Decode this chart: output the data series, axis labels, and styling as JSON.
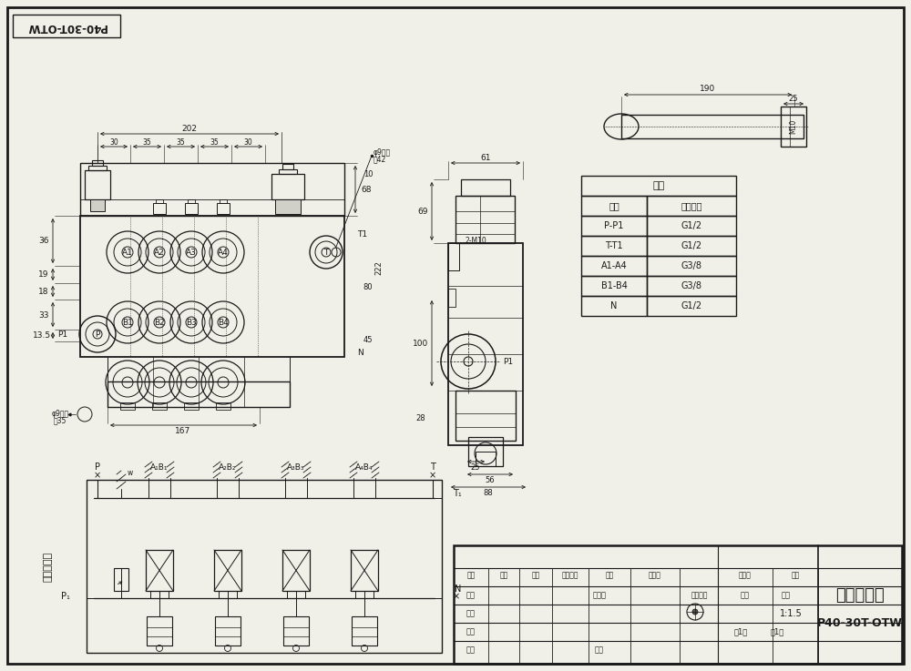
{
  "title_mirrored": "P40-30T-OTW",
  "bg_color": "#f0f0e8",
  "line_color": "#1a1a1a",
  "table_title": "阀体",
  "table_headers": [
    "接口",
    "螺纹规格"
  ],
  "table_rows": [
    [
      "P-P1",
      "G1/2"
    ],
    [
      "T-T1",
      "G1/2"
    ],
    [
      "A1-A4",
      "G3/8"
    ],
    [
      "B1-B4",
      "G3/8"
    ],
    [
      "N",
      "G1/2"
    ]
  ],
  "dim_202": "202",
  "dim_30a": "30",
  "dim_35a": "35",
  "dim_35b": "35",
  "dim_35c": "35",
  "dim_30b": "30",
  "dim_68": "68",
  "dim_36": "36",
  "dim_19": "19",
  "dim_18": "18",
  "dim_33": "33",
  "dim_13p5": "13.5",
  "dim_10": "10",
  "dim_80": "80",
  "dim_45": "45",
  "dim_222": "222",
  "dim_167": "167",
  "dim_phi9_1_line1": "φ9通孔",
  "dim_phi9_1_line2": "高42",
  "dim_phi9_2_line1": "φ9通孔",
  "dim_phi9_2_line2": "高35",
  "dim_61": "61",
  "dim_69": "69",
  "dim_100": "100",
  "dim_2M10": "2-M10",
  "dim_28": "28",
  "dim_25": "25",
  "dim_56": "56",
  "dim_88": "88",
  "dim_190": "190",
  "dim_M10": "M10",
  "labels_a": [
    "A1",
    "A2",
    "A3",
    "A4"
  ],
  "labels_b": [
    "B1",
    "B2",
    "B3",
    "B4"
  ],
  "label_P": "P",
  "label_T": "T",
  "label_P1": "P1",
  "label_T1": "T1",
  "label_N": "N",
  "bottom_label": "液压原理图",
  "footnote": "四联多路阀",
  "doc_ref": "P40-30T-OTW",
  "scale": "1:1.5",
  "tb_label_biaoji": "标记",
  "tb_label_chushu": "处数",
  "tb_label_fenqu": "分区",
  "tb_label_tuwenjian": "图文件号",
  "tb_label_qianming": "签名",
  "tb_label_nianyueri": "年月日",
  "tb_label_banbenHao": "版本号",
  "tb_label_leixing": "类型",
  "tb_label_sheji": "设计",
  "tb_label_jiaodui": "校对",
  "tb_label_shenhe": "审核",
  "tb_label_gongyi": "工艺",
  "tb_label_biaozhun": "标准化",
  "tb_label_pizhun": "批准",
  "tb_label_jingqi": "静岐标记",
  "tb_label_zhongliang": "重量",
  "tb_label_bili": "比例",
  "tb_label_gong": "共1张",
  "tb_label_di": "第1页",
  "tb_label_biaozhunHua": "标准化"
}
